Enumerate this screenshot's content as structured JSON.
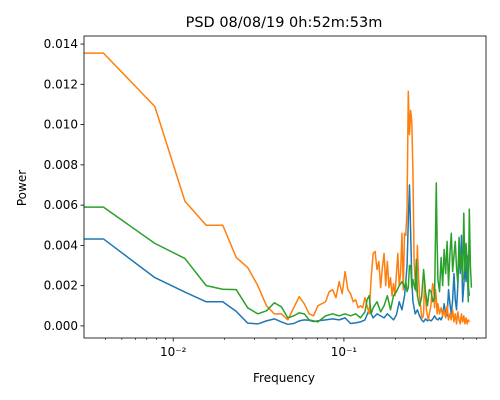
{
  "chart_data": {
    "type": "line",
    "title": "PSD 08/08/19 0h:52m:53m",
    "xlabel": "Frequency",
    "ylabel": "Power",
    "xscale": "log",
    "xlim": [
      0.003,
      0.68
    ],
    "ylim": [
      -0.0006,
      0.0144
    ],
    "grid": false,
    "yticks": [
      0.0,
      0.002,
      0.004,
      0.006,
      0.008,
      0.01,
      0.012,
      0.014
    ],
    "ytick_labels": [
      "0.000",
      "0.002",
      "0.004",
      "0.006",
      "0.008",
      "0.010",
      "0.012",
      "0.014"
    ],
    "xticks_major": [
      0.01,
      0.1
    ],
    "xtick_labels": [
      "10⁻²",
      "10⁻¹"
    ],
    "xticks_minor": [
      0.004,
      0.005,
      0.006,
      0.007,
      0.008,
      0.009,
      0.02,
      0.03,
      0.04,
      0.05,
      0.06,
      0.07,
      0.08,
      0.09,
      0.2,
      0.3,
      0.4,
      0.5,
      0.6
    ],
    "series": [
      {
        "color": "#1f77b4",
        "points": [
          [
            0.003,
            0.00432
          ],
          [
            0.0039,
            0.00432
          ],
          [
            0.0078,
            0.0024
          ],
          [
            0.0117,
            0.00168
          ],
          [
            0.0156,
            0.0012
          ],
          [
            0.0195,
            0.0012
          ],
          [
            0.0234,
            0.00072
          ],
          [
            0.0273,
            0.00014
          ],
          [
            0.0313,
            0.0001
          ],
          [
            0.0352,
            0.00025
          ],
          [
            0.0391,
            0.00035
          ],
          [
            0.043,
            0.0002
          ],
          [
            0.0469,
            8e-05
          ],
          [
            0.0508,
            0.00012
          ],
          [
            0.0547,
            0.00025
          ],
          [
            0.0586,
            0.0003
          ],
          [
            0.0625,
            0.00028
          ],
          [
            0.0664,
            0.00022
          ],
          [
            0.0703,
            0.00025
          ],
          [
            0.0781,
            0.0003
          ],
          [
            0.0859,
            0.00035
          ],
          [
            0.0938,
            0.0003
          ],
          [
            0.1016,
            0.0004
          ],
          [
            0.1094,
            0.00012
          ],
          [
            0.1172,
            0.00015
          ],
          [
            0.125,
            0.0002
          ],
          [
            0.1328,
            0.0003
          ],
          [
            0.1406,
            0.0008
          ],
          [
            0.1484,
            0.0004
          ],
          [
            0.1563,
            0.0006
          ],
          [
            0.1641,
            0.0005
          ],
          [
            0.1719,
            0.0004
          ],
          [
            0.1797,
            0.0006
          ],
          [
            0.1875,
            0.00045
          ],
          [
            0.1953,
            0.0003
          ],
          [
            0.2031,
            0.00055
          ],
          [
            0.2109,
            0.0012
          ],
          [
            0.2188,
            0.0008
          ],
          [
            0.2266,
            0.0015
          ],
          [
            0.2305,
            0.0022
          ],
          [
            0.2344,
            0.003
          ],
          [
            0.2383,
            0.0052
          ],
          [
            0.2422,
            0.007
          ],
          [
            0.2461,
            0.0046
          ],
          [
            0.25,
            0.0022
          ],
          [
            0.2539,
            0.0012
          ],
          [
            0.2617,
            0.0006
          ],
          [
            0.2695,
            0.0008
          ],
          [
            0.2773,
            0.0005
          ],
          [
            0.2852,
            0.0003
          ],
          [
            0.293,
            0.0002
          ],
          [
            0.3008,
            0.00035
          ],
          [
            0.3086,
            0.00025
          ],
          [
            0.3164,
            0.0003
          ],
          [
            0.3242,
            0.00025
          ],
          [
            0.332,
            0.00035
          ],
          [
            0.3398,
            0.0005
          ],
          [
            0.3477,
            0.00035
          ],
          [
            0.3555,
            0.0003
          ],
          [
            0.3633,
            0.0004
          ],
          [
            0.3711,
            0.0003
          ],
          [
            0.3789,
            0.0005
          ],
          [
            0.3867,
            0.0011
          ],
          [
            0.3945,
            0.0006
          ],
          [
            0.4023,
            0.0005
          ],
          [
            0.4102,
            0.0018
          ],
          [
            0.418,
            0.0011
          ],
          [
            0.4258,
            0.0006
          ],
          [
            0.4336,
            0.0013
          ],
          [
            0.4414,
            0.0026
          ],
          [
            0.4492,
            0.0013
          ],
          [
            0.457,
            0.0008
          ],
          [
            0.4648,
            0.002
          ],
          [
            0.4727,
            0.0038
          ],
          [
            0.4805,
            0.0026
          ],
          [
            0.4883,
            0.0045
          ],
          [
            0.4961,
            0.0012
          ],
          [
            0.5039,
            0.002
          ],
          [
            0.5117,
            0.003
          ],
          [
            0.5195,
            0.0022
          ],
          [
            0.5273,
            0.0035
          ],
          [
            0.5352,
            0.002
          ],
          [
            0.543,
            0.0015
          ]
        ]
      },
      {
        "color": "#ff7f0e",
        "points": [
          [
            0.003,
            0.01355
          ],
          [
            0.0039,
            0.01355
          ],
          [
            0.0078,
            0.0109
          ],
          [
            0.0117,
            0.0062
          ],
          [
            0.0156,
            0.005
          ],
          [
            0.0195,
            0.005
          ],
          [
            0.0234,
            0.0034
          ],
          [
            0.0273,
            0.0029
          ],
          [
            0.0313,
            0.002
          ],
          [
            0.0352,
            0.001
          ],
          [
            0.0391,
            0.0006
          ],
          [
            0.043,
            0.0006
          ],
          [
            0.0469,
            0.0003
          ],
          [
            0.0508,
            0.0009
          ],
          [
            0.0547,
            0.00145
          ],
          [
            0.0586,
            0.0011
          ],
          [
            0.0625,
            0.0006
          ],
          [
            0.0664,
            0.0005
          ],
          [
            0.0703,
            0.001
          ],
          [
            0.0781,
            0.0012
          ],
          [
            0.082,
            0.0017
          ],
          [
            0.0859,
            0.0018
          ],
          [
            0.0898,
            0.0014
          ],
          [
            0.0938,
            0.0022
          ],
          [
            0.0977,
            0.0016
          ],
          [
            0.1016,
            0.0027
          ],
          [
            0.1055,
            0.0018
          ],
          [
            0.1094,
            0.0016
          ],
          [
            0.1133,
            0.0012
          ],
          [
            0.1172,
            0.0013
          ],
          [
            0.1211,
            0.0009
          ],
          [
            0.125,
            0.001
          ],
          [
            0.1289,
            0.0009
          ],
          [
            0.1328,
            0.0014
          ],
          [
            0.1367,
            0.001
          ],
          [
            0.1406,
            0.0006
          ],
          [
            0.1445,
            0.0024
          ],
          [
            0.1484,
            0.0036
          ],
          [
            0.1523,
            0.0037
          ],
          [
            0.1563,
            0.0028
          ],
          [
            0.1602,
            0.0032
          ],
          [
            0.1641,
            0.0019
          ],
          [
            0.168,
            0.0029
          ],
          [
            0.1719,
            0.0036
          ],
          [
            0.1758,
            0.002
          ],
          [
            0.1797,
            0.0032
          ],
          [
            0.1836,
            0.0019
          ],
          [
            0.1875,
            0.0024
          ],
          [
            0.1914,
            0.0015
          ],
          [
            0.1953,
            0.0021
          ],
          [
            0.1992,
            0.0015
          ],
          [
            0.2031,
            0.0026
          ],
          [
            0.207,
            0.0036
          ],
          [
            0.2109,
            0.002
          ],
          [
            0.2148,
            0.0026
          ],
          [
            0.2188,
            0.0046
          ],
          [
            0.2227,
            0.0018
          ],
          [
            0.2266,
            0.0046
          ],
          [
            0.2305,
            0.0045
          ],
          [
            0.2344,
            0.0058
          ],
          [
            0.2383,
            0.01165
          ],
          [
            0.2422,
            0.0095
          ],
          [
            0.2461,
            0.0107
          ],
          [
            0.25,
            0.0101
          ],
          [
            0.2539,
            0.0075
          ],
          [
            0.2578,
            0.0032
          ],
          [
            0.2617,
            0.0022
          ],
          [
            0.2656,
            0.0017
          ],
          [
            0.2695,
            0.004
          ],
          [
            0.2734,
            0.0025
          ],
          [
            0.2773,
            0.0015
          ],
          [
            0.2813,
            0.001
          ],
          [
            0.2852,
            0.0005
          ],
          [
            0.2891,
            0.0004
          ],
          [
            0.293,
            0.0006
          ],
          [
            0.2969,
            0.0023
          ],
          [
            0.3008,
            0.0014
          ],
          [
            0.3047,
            0.0008
          ],
          [
            0.3086,
            0.0005
          ],
          [
            0.3125,
            0.0003
          ],
          [
            0.3164,
            0.0006
          ],
          [
            0.3203,
            0.0008
          ],
          [
            0.3242,
            0.0011
          ],
          [
            0.3281,
            0.0018
          ],
          [
            0.332,
            0.0021
          ],
          [
            0.3359,
            0.0018
          ],
          [
            0.3398,
            0.0009
          ],
          [
            0.3438,
            0.0018
          ],
          [
            0.3477,
            0.0014
          ],
          [
            0.3516,
            0.0006
          ],
          [
            0.3555,
            0.0011
          ],
          [
            0.3633,
            0.0006
          ],
          [
            0.3711,
            0.0009
          ],
          [
            0.3789,
            0.0005
          ],
          [
            0.3867,
            0.0008
          ],
          [
            0.3945,
            0.0004
          ],
          [
            0.4023,
            0.001
          ],
          [
            0.4102,
            0.0003
          ],
          [
            0.418,
            0.0006
          ],
          [
            0.4258,
            0.0003
          ],
          [
            0.4336,
            0.0008
          ],
          [
            0.4414,
            0.0002
          ],
          [
            0.4492,
            0.0006
          ],
          [
            0.457,
            0.0001
          ],
          [
            0.4648,
            0.0007
          ],
          [
            0.4727,
            0.0003
          ],
          [
            0.4805,
            0.0001
          ],
          [
            0.4883,
            0.0006
          ],
          [
            0.4961,
            0.0002
          ],
          [
            0.5039,
            0.0005
          ],
          [
            0.5117,
            0.0001
          ],
          [
            0.5195,
            0.0004
          ],
          [
            0.5273,
            0.0001
          ],
          [
            0.5352,
            0.0003
          ],
          [
            0.543,
            0.0002
          ]
        ]
      },
      {
        "color": "#2ca02c",
        "points": [
          [
            0.003,
            0.0059
          ],
          [
            0.0039,
            0.0059
          ],
          [
            0.0078,
            0.0041
          ],
          [
            0.0117,
            0.00335
          ],
          [
            0.0156,
            0.002
          ],
          [
            0.0195,
            0.00182
          ],
          [
            0.0234,
            0.0018
          ],
          [
            0.0273,
            0.0009
          ],
          [
            0.0313,
            0.0006
          ],
          [
            0.0352,
            0.00075
          ],
          [
            0.0391,
            0.00115
          ],
          [
            0.043,
            0.00095
          ],
          [
            0.0469,
            0.0004
          ],
          [
            0.0508,
            0.0005
          ],
          [
            0.0547,
            0.00065
          ],
          [
            0.0586,
            0.0006
          ],
          [
            0.0625,
            0.0003
          ],
          [
            0.0664,
            0.00025
          ],
          [
            0.0703,
            0.0002
          ],
          [
            0.0781,
            0.0005
          ],
          [
            0.0859,
            0.0006
          ],
          [
            0.0938,
            0.0005
          ],
          [
            0.1016,
            0.0006
          ],
          [
            0.1094,
            0.0005
          ],
          [
            0.1172,
            0.0006
          ],
          [
            0.125,
            0.0004
          ],
          [
            0.1328,
            0.0007
          ],
          [
            0.1367,
            0.0013
          ],
          [
            0.1406,
            0.0015
          ],
          [
            0.1445,
            0.0006
          ],
          [
            0.1484,
            0.0009
          ],
          [
            0.1563,
            0.0012
          ],
          [
            0.1641,
            0.0007
          ],
          [
            0.1719,
            0.001
          ],
          [
            0.1797,
            0.0015
          ],
          [
            0.1875,
            0.0008
          ],
          [
            0.1953,
            0.0015
          ],
          [
            0.2031,
            0.0017
          ],
          [
            0.2109,
            0.002
          ],
          [
            0.2188,
            0.0022
          ],
          [
            0.2266,
            0.0019
          ],
          [
            0.2305,
            0.0022
          ],
          [
            0.2344,
            0.0017
          ],
          [
            0.2383,
            0.0019
          ],
          [
            0.2422,
            0.003
          ],
          [
            0.2461,
            0.003
          ],
          [
            0.25,
            0.0019
          ],
          [
            0.2539,
            0.0023
          ],
          [
            0.2578,
            0.002
          ],
          [
            0.2617,
            0.0018
          ],
          [
            0.2656,
            0.0033
          ],
          [
            0.2695,
            0.0015
          ],
          [
            0.2773,
            0.001
          ],
          [
            0.2852,
            0.0014
          ],
          [
            0.293,
            0.0028
          ],
          [
            0.3008,
            0.0017
          ],
          [
            0.3086,
            0.001
          ],
          [
            0.3164,
            0.0018
          ],
          [
            0.3242,
            0.0017
          ],
          [
            0.332,
            0.0012
          ],
          [
            0.3398,
            0.0014
          ],
          [
            0.3477,
            0.0071
          ],
          [
            0.3516,
            0.0042
          ],
          [
            0.3555,
            0.0023
          ],
          [
            0.3633,
            0.0017
          ],
          [
            0.3711,
            0.0034
          ],
          [
            0.3789,
            0.002
          ],
          [
            0.3867,
            0.0038
          ],
          [
            0.3945,
            0.0026
          ],
          [
            0.4023,
            0.0042
          ],
          [
            0.4102,
            0.002
          ],
          [
            0.418,
            0.0036
          ],
          [
            0.4258,
            0.0046
          ],
          [
            0.4336,
            0.0027
          ],
          [
            0.4414,
            0.0035
          ],
          [
            0.4492,
            0.0042
          ],
          [
            0.457,
            0.0029
          ],
          [
            0.4648,
            0.0021
          ],
          [
            0.4727,
            0.0044
          ],
          [
            0.4805,
            0.0028
          ],
          [
            0.4883,
            0.0036
          ],
          [
            0.4961,
            0.0023
          ],
          [
            0.5039,
            0.0056
          ],
          [
            0.5117,
            0.0027
          ],
          [
            0.5195,
            0.0041
          ],
          [
            0.5273,
            0.0032
          ],
          [
            0.5352,
            0.0012
          ],
          [
            0.543,
            0.0058
          ],
          [
            0.5508,
            0.003
          ],
          [
            0.5586,
            0.0019
          ]
        ]
      }
    ]
  }
}
